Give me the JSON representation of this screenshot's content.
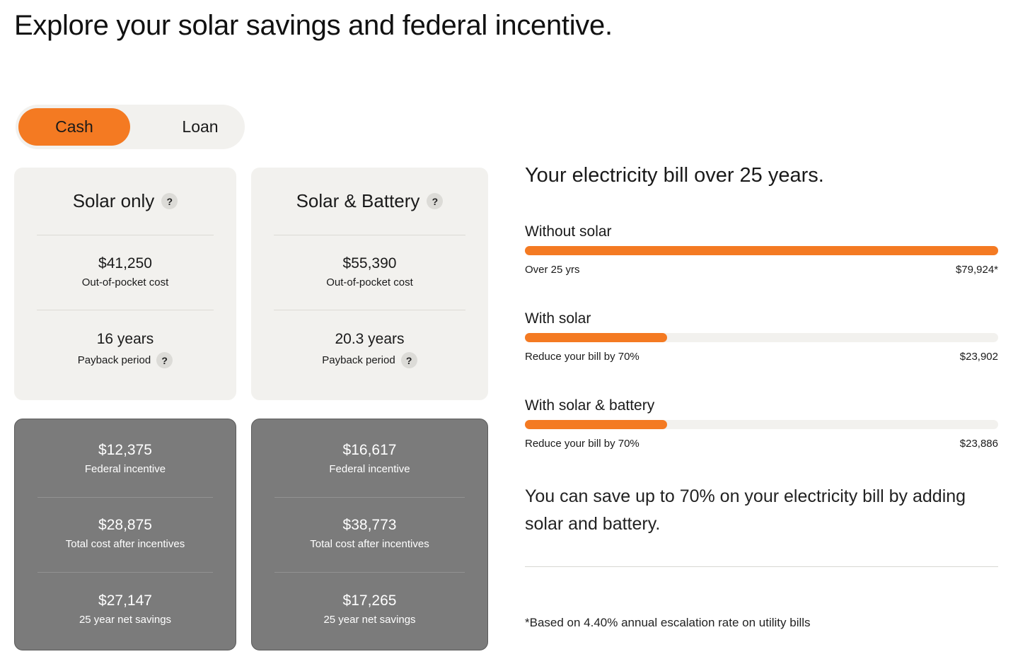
{
  "title": "Explore your solar savings and federal incentive.",
  "toggle": {
    "options": [
      "Cash",
      "Loan"
    ],
    "selected": "Cash"
  },
  "colors": {
    "accent": "#f47a22",
    "card_light": "#f2f1ee",
    "card_dark": "#7b7b7b"
  },
  "help_icon": "?",
  "cards": [
    {
      "title": "Solar only",
      "out_of_pocket": {
        "value": "$41,250",
        "label": "Out-of-pocket cost"
      },
      "payback": {
        "value": "16 years",
        "label": "Payback period"
      },
      "federal_incentive": {
        "value": "$12,375",
        "label": "Federal incentive"
      },
      "total_after": {
        "value": "$28,875",
        "label": "Total cost after incentives"
      },
      "net_savings": {
        "value": "$27,147",
        "label": "25 year net savings"
      }
    },
    {
      "title": "Solar & Battery",
      "out_of_pocket": {
        "value": "$55,390",
        "label": "Out-of-pocket cost"
      },
      "payback": {
        "value": "20.3 years",
        "label": "Payback period"
      },
      "federal_incentive": {
        "value": "$16,617",
        "label": "Federal incentive"
      },
      "total_after": {
        "value": "$38,773",
        "label": "Total cost after incentives"
      },
      "net_savings": {
        "value": "$17,265",
        "label": "25 year net savings"
      }
    }
  ],
  "bill": {
    "title": "Your electricity bill over 25 years.",
    "bars": [
      {
        "name": "Without solar",
        "note": "Over 25 yrs",
        "amount": "$79,924*",
        "fraction": 1.0
      },
      {
        "name": "With solar",
        "note": "Reduce your bill by 70%",
        "amount": "$23,902",
        "fraction": 0.3
      },
      {
        "name": "With solar & battery",
        "note": "Reduce your bill by 70%",
        "amount": "$23,886",
        "fraction": 0.3
      }
    ]
  },
  "savings_message": "You can save up to 70% on your electricity bill by adding solar and battery.",
  "footnote": "*Based on 4.40% annual escalation rate on utility bills"
}
